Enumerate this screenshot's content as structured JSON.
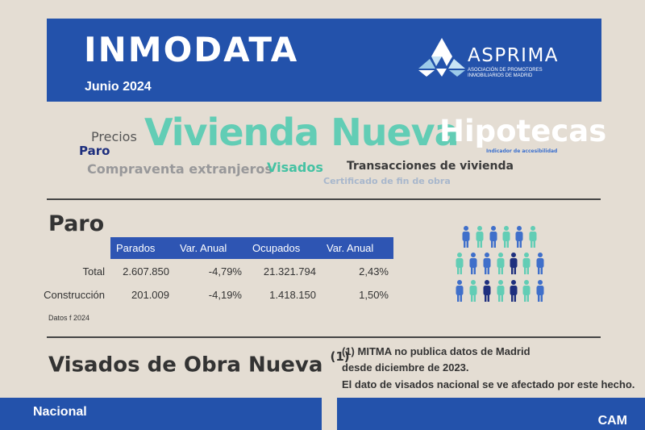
{
  "header": {
    "title": "INMODATA",
    "date": "Junio 2024",
    "brand": "ASPRIMA",
    "brand_sub_1": "ASOCIACIÓN DE PROMOTORES",
    "brand_sub_2": "INMOBILIARIOS DE MADRID"
  },
  "word_cloud": [
    "Vivienda Nueva",
    "Hipotecas",
    "Precios",
    "Paro",
    "Indicador de accesibilidad",
    "Compraventa extranjeros",
    "Visados",
    "Transacciones de vivienda",
    "Certificado de fin de obra"
  ],
  "paro": {
    "title": "Paro",
    "columns": [
      "Parados",
      "Var. Anual",
      "Ocupados",
      "Var. Anual"
    ],
    "rows": [
      {
        "label": "Total",
        "values": [
          "2.607.850",
          "-4,79%",
          "21.321.794",
          "2,43%"
        ]
      },
      {
        "label": "Construcción",
        "values": [
          "201.009",
          "-4,19%",
          "1.418.150",
          "1,50%"
        ]
      }
    ],
    "source": "Datos f 2024"
  },
  "visados": {
    "title": "Visados de Obra Nueva",
    "title_sup": "(1)",
    "note_lines": [
      "(1) MITMA no publica datos de Madrid",
      "desde diciembre de 2023.",
      "El dato de visados nacional se ve afectado por este hecho."
    ],
    "panel_left": "Nacional",
    "panel_right": "CAM"
  },
  "colors": {
    "header_bg": "#2352ab",
    "page_bg": "#e4ddd3",
    "teal": "#62cdb5",
    "navy": "#1e2f7e",
    "blue": "#3f6fca"
  }
}
